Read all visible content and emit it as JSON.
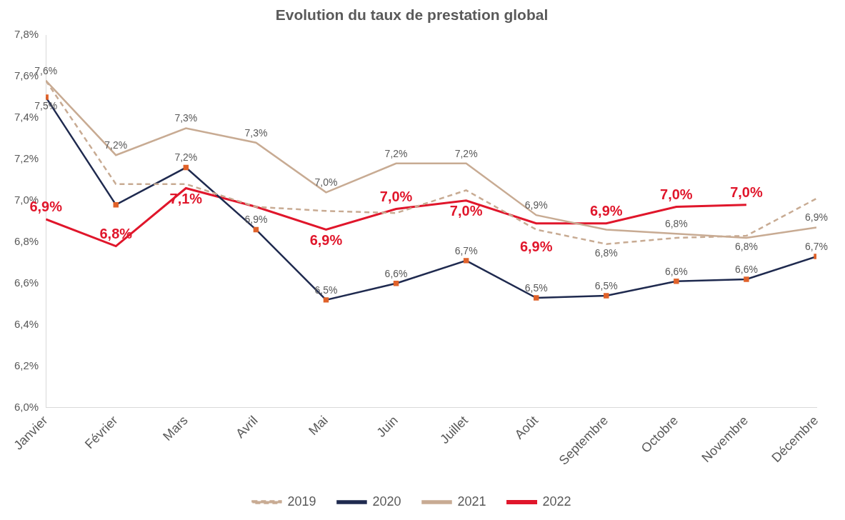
{
  "chart_data": {
    "type": "line",
    "title": "Evolution du taux de prestation global",
    "categories": [
      "Janvier",
      "Février",
      "Mars",
      "Avril",
      "Mai",
      "Juin",
      "Juillet",
      "Août",
      "Septembre",
      "Octobre",
      "Novembre",
      "Décembre"
    ],
    "series": [
      {
        "name": "2019",
        "color": "#c8ab93",
        "line_style": "dashed",
        "marker": "none",
        "values": [
          7.58,
          7.08,
          7.08,
          6.97,
          6.95,
          6.94,
          7.05,
          6.86,
          6.79,
          6.82,
          6.83,
          7.01
        ],
        "value_labels": [
          null,
          null,
          null,
          null,
          null,
          null,
          null,
          null,
          "6,8%",
          null,
          null,
          null
        ]
      },
      {
        "name": "2020",
        "color": "#1f2a4f",
        "line_style": "solid",
        "marker": "square",
        "values": [
          7.5,
          6.98,
          7.16,
          6.86,
          6.52,
          6.6,
          6.71,
          6.53,
          6.54,
          6.61,
          6.62,
          6.73
        ],
        "value_labels": [
          "7,5%",
          null,
          "7,2%",
          "6,9%",
          "6,5%",
          "6,6%",
          "6,7%",
          "6,5%",
          "6,5%",
          "6,6%",
          "6,6%",
          "6,7%"
        ]
      },
      {
        "name": "2021",
        "color": "#c8ab93",
        "line_style": "solid",
        "marker": "none",
        "values": [
          7.58,
          7.22,
          7.35,
          7.28,
          7.04,
          7.18,
          7.18,
          6.93,
          6.86,
          6.84,
          6.82,
          6.87
        ],
        "value_labels": [
          "7,6%",
          "7,2%",
          "7,3%",
          "7,3%",
          "7,0%",
          "7,2%",
          "7,2%",
          "6,9%",
          null,
          "6,8%",
          "6,8%",
          "6,9%"
        ]
      },
      {
        "name": "2022",
        "color": "#e0162b",
        "line_style": "solid",
        "marker": "none",
        "values": [
          6.91,
          6.78,
          7.06,
          6.97,
          6.86,
          6.96,
          7.0,
          6.89,
          6.89,
          6.97,
          6.98,
          null
        ],
        "value_labels": [
          "6,9%",
          "6,8%",
          "7,1%",
          null,
          "6,9%",
          "7,0%",
          "7,0%",
          "6,9%",
          "6,9%",
          "7,0%",
          "7,0%",
          null
        ]
      }
    ],
    "ylim": [
      6.0,
      7.8
    ],
    "yticks": [
      {
        "value": 6.0,
        "label": "6,0%"
      },
      {
        "value": 6.2,
        "label": "6,2%"
      },
      {
        "value": 6.4,
        "label": "6,4%"
      },
      {
        "value": 6.6,
        "label": "6,6%"
      },
      {
        "value": 6.8,
        "label": "6,8%"
      },
      {
        "value": 7.0,
        "label": "7,0%"
      },
      {
        "value": 7.2,
        "label": "7,2%"
      },
      {
        "value": 7.4,
        "label": "7,4%"
      },
      {
        "value": 7.6,
        "label": "7,6%"
      },
      {
        "value": 7.8,
        "label": "7,8%"
      }
    ],
    "grid": false,
    "legend": "bottom",
    "data_labels": true
  }
}
